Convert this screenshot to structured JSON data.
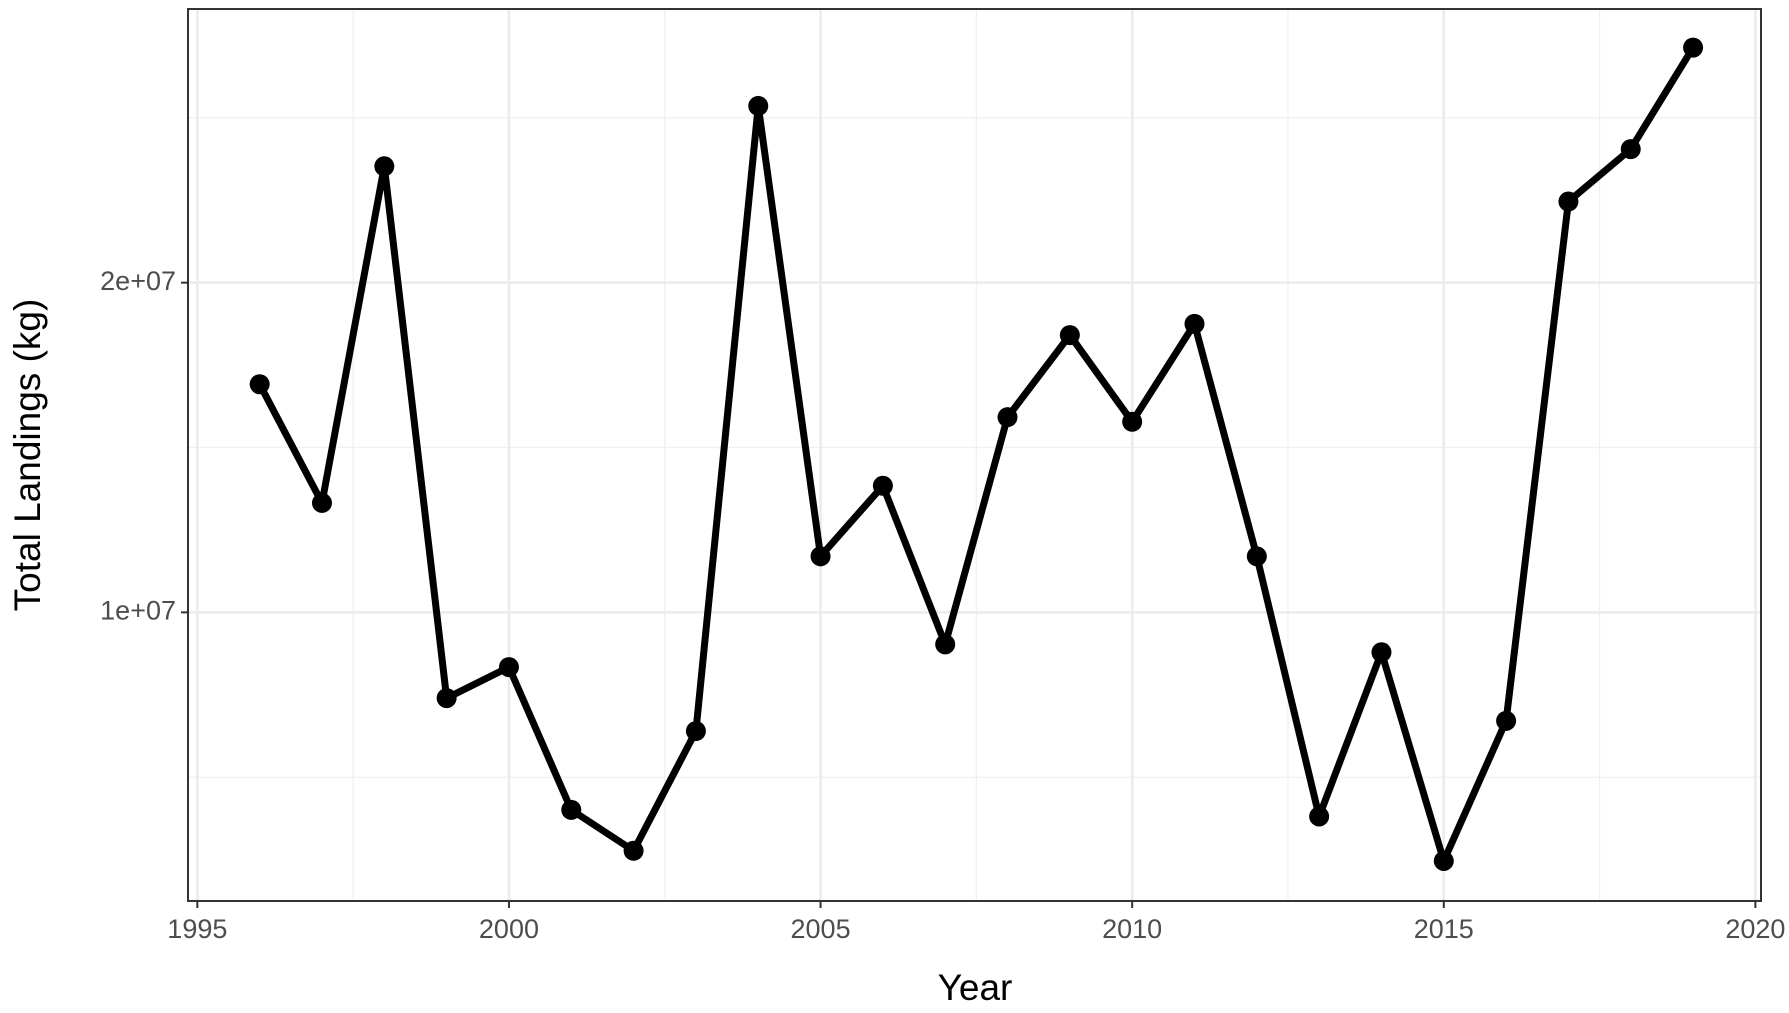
{
  "chart_data": {
    "type": "line",
    "x_label": "Year",
    "y_label": "Total Landings (kg)",
    "x": [
      1996,
      1997,
      1998,
      1999,
      2000,
      2001,
      2002,
      2003,
      2004,
      2005,
      2006,
      2007,
      2008,
      2009,
      2010,
      2011,
      2012,
      2013,
      2014,
      2015,
      2016,
      2017,
      2018,
      2019
    ],
    "series": [
      {
        "color": "#000000",
        "values": [
          16920000,
          13320000,
          23530000,
          7400000,
          8340000,
          4010000,
          2770000,
          6400000,
          25360000,
          11700000,
          13840000,
          9030000,
          15920000,
          18410000,
          15780000,
          18750000,
          11700000,
          3810000,
          8790000,
          2460000,
          6710000,
          22460000,
          24050000,
          27130000
        ]
      }
    ],
    "xlim": [
      1994.85,
      2020.09
    ],
    "xticks": [
      1995,
      2000,
      2005,
      2010,
      2015,
      2020
    ],
    "xminor": [
      1997.5,
      2002.5,
      2007.5,
      2012.5,
      2017.5
    ],
    "ylim": [
      1246000,
      28300000
    ],
    "yticks": [
      {
        "value": 10000000,
        "label": "1e+07"
      },
      {
        "value": 20000000,
        "label": "2e+07"
      }
    ],
    "yminor": [
      5000000,
      15000000,
      25000000
    ],
    "grid": true
  }
}
